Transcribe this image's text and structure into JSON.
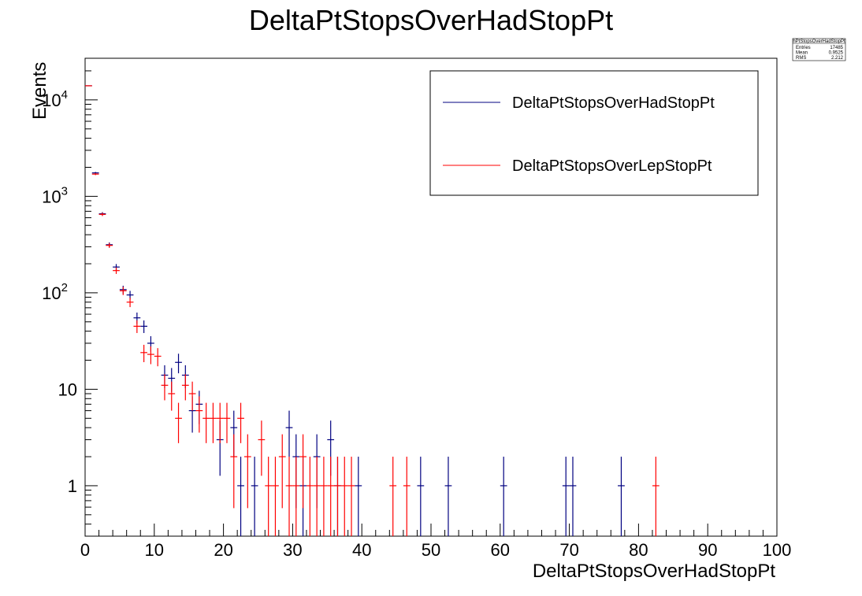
{
  "chart_data": {
    "type": "scatter",
    "title": "DeltaPtStopsOverHadStopPt",
    "xlabel": "DeltaPtStopsOverHadStopPt",
    "ylabel": "Events",
    "xlim": [
      0,
      100
    ],
    "ylim": [
      0.3,
      27000
    ],
    "yscale": "log",
    "x_ticks": [
      "0",
      "10",
      "20",
      "30",
      "40",
      "50",
      "60",
      "70",
      "80",
      "90",
      "100"
    ],
    "y_ticks": [
      {
        "base": "1",
        "exp": ""
      },
      {
        "base": "10",
        "exp": ""
      },
      {
        "base": "10",
        "exp": "2"
      },
      {
        "base": "10",
        "exp": "3"
      },
      {
        "base": "10",
        "exp": "4"
      }
    ],
    "bin_width": 1,
    "legend_position": "top-right",
    "series": [
      {
        "name": "DeltaPtStopsOverHadStopPt",
        "color": "#000080",
        "x": [
          0.5,
          1.5,
          2.5,
          3.5,
          4.5,
          5.5,
          6.5,
          7.5,
          8.5,
          9.5,
          11.5,
          12.5,
          13.5,
          14.5,
          15.5,
          16.5,
          19.5,
          21.5,
          22.5,
          24.5,
          29.5,
          30.5,
          31.5,
          33.5,
          35.5,
          36.5,
          39.5,
          48.5,
          52.5,
          60.5,
          69.5,
          70.5,
          77.5
        ],
        "values": [
          14000,
          1750,
          660,
          315,
          185,
          108,
          95,
          55,
          45,
          30,
          14,
          13,
          19,
          14,
          6,
          7,
          3,
          4,
          1,
          1,
          4,
          2,
          1,
          2,
          3,
          1,
          1,
          1,
          1,
          1,
          1,
          1,
          1
        ]
      },
      {
        "name": "DeltaPtStopsOverLepStopPt",
        "color": "#ff0000",
        "x": [
          0.5,
          1.5,
          2.5,
          3.5,
          4.5,
          5.5,
          6.5,
          7.5,
          8.5,
          9.5,
          10.5,
          11.5,
          12.5,
          13.5,
          14.5,
          15.5,
          16.5,
          17.5,
          18.5,
          19.5,
          20.5,
          21.5,
          22.5,
          23.5,
          25.5,
          26.5,
          27.5,
          28.5,
          29.5,
          30.5,
          31.5,
          32.5,
          33.5,
          34.5,
          35.5,
          36.5,
          37.5,
          38.5,
          44.5,
          46.5,
          82.5
        ],
        "values": [
          14000,
          1700,
          650,
          310,
          170,
          105,
          80,
          45,
          24,
          23,
          22,
          11,
          9,
          5,
          11,
          9,
          6,
          5,
          5,
          5,
          5,
          2,
          5,
          2,
          3,
          1,
          1,
          2,
          1,
          1,
          2,
          1,
          1,
          1,
          1,
          1,
          1,
          1,
          1,
          1,
          1
        ]
      }
    ]
  },
  "stats_box": {
    "name": "hPtStopsOverHadStopPt",
    "rows": [
      {
        "label": "Entries",
        "value": "17485"
      },
      {
        "label": "Mean",
        "value": "0.9525"
      },
      {
        "label": "RMS",
        "value": "2.212"
      }
    ]
  }
}
